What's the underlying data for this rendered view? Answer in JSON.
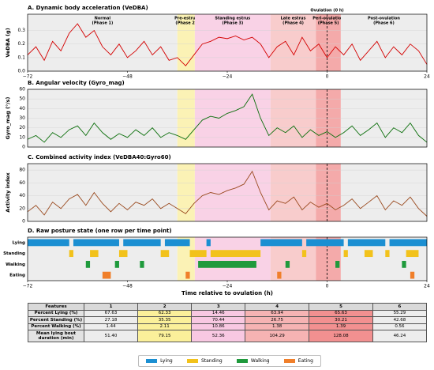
{
  "chart_data": [
    {
      "type": "line",
      "title": "A.  Dynamic body acceleration (VeDBA)",
      "ylabel": "VeDBA (g)",
      "color": "#d40000",
      "grid": true,
      "xlim": [
        -72,
        24
      ],
      "ylim": [
        0,
        0.42
      ],
      "xticks": [
        {
          "value": -72,
          "label": "−72"
        },
        {
          "value": -48,
          "label": "−48"
        },
        {
          "value": -24,
          "label": "−24"
        },
        0,
        24
      ],
      "yticks": [
        {
          "value": 0,
          "label": "0.0"
        },
        0.1,
        0.2,
        0.3
      ],
      "phases": [
        {
          "name": "Normal",
          "phase": "(Phase 1)",
          "start": -72,
          "end": -36,
          "color": "#ededed"
        },
        {
          "name": "Pre-estrus",
          "phase": "(Phase 2)",
          "start": -36,
          "end": -31.8,
          "color": "#fbf2b5"
        },
        {
          "name": "Standing estrus",
          "phase": "(Phase 3)",
          "start": -31.8,
          "end": -13.6,
          "color": "#f9d2e6"
        },
        {
          "name": "Late estrus",
          "phase": "(Phase 4)",
          "start": -13.6,
          "end": -2.7,
          "color": "#f8cccc"
        },
        {
          "name": "Peri-ovulation",
          "phase": "(Phase 5)",
          "start": -2.7,
          "end": 3.3,
          "color": "#f4aaaa"
        },
        {
          "name": "Post-ovulation",
          "phase": "(Phase 6)",
          "start": 3.3,
          "end": 24,
          "color": "#ededed"
        }
      ],
      "ovulation": {
        "label": "Ovulation (0 h)",
        "x": 0
      },
      "x": [
        -72,
        -70,
        -68,
        -66,
        -64,
        -62,
        -60,
        -58,
        -56,
        -54,
        -52,
        -50,
        -48,
        -46,
        -44,
        -42,
        -40,
        -38,
        -36,
        -34,
        -32,
        -30,
        -28,
        -26,
        -24,
        -22,
        -20,
        -18,
        -16,
        -14,
        -12,
        -10,
        -8,
        -6,
        -4,
        -2,
        0,
        2,
        4,
        6,
        8,
        10,
        12,
        14,
        16,
        18,
        20,
        22,
        24
      ],
      "values": [
        0.12,
        0.18,
        0.08,
        0.22,
        0.15,
        0.28,
        0.35,
        0.25,
        0.3,
        0.18,
        0.12,
        0.2,
        0.1,
        0.15,
        0.22,
        0.12,
        0.18,
        0.08,
        0.1,
        0.04,
        0.12,
        0.2,
        0.22,
        0.25,
        0.24,
        0.26,
        0.23,
        0.25,
        0.2,
        0.1,
        0.18,
        0.22,
        0.12,
        0.25,
        0.15,
        0.2,
        0.1,
        0.18,
        0.12,
        0.2,
        0.08,
        0.15,
        0.22,
        0.1,
        0.18,
        0.12,
        0.2,
        0.15,
        0.05
      ]
    },
    {
      "type": "line",
      "title": "B.  Angular velocity (Gyro_mag)",
      "ylabel": "Gyro_mag (°/s)",
      "color": "#0a6e0a",
      "grid": true,
      "xlim": [
        -72,
        24
      ],
      "ylim": [
        0,
        60
      ],
      "yticks": [
        0,
        10,
        20,
        30,
        40,
        50,
        60
      ],
      "x": [
        -72,
        -70,
        -68,
        -66,
        -64,
        -62,
        -60,
        -58,
        -56,
        -54,
        -52,
        -50,
        -48,
        -46,
        -44,
        -42,
        -40,
        -38,
        -36,
        -34,
        -32,
        -30,
        -28,
        -26,
        -24,
        -22,
        -20,
        -18,
        -16,
        -14,
        -12,
        -10,
        -8,
        -6,
        -4,
        -2,
        0,
        2,
        4,
        6,
        8,
        10,
        12,
        14,
        16,
        18,
        20,
        22,
        24
      ],
      "values": [
        8,
        12,
        5,
        15,
        10,
        18,
        22,
        12,
        25,
        15,
        8,
        14,
        10,
        18,
        12,
        20,
        10,
        15,
        12,
        8,
        18,
        28,
        32,
        30,
        35,
        38,
        42,
        55,
        30,
        12,
        20,
        15,
        22,
        10,
        18,
        12,
        16,
        10,
        15,
        22,
        12,
        18,
        25,
        10,
        20,
        15,
        25,
        12,
        5
      ]
    },
    {
      "type": "line",
      "title": "C.  Combined activity index (VeDBA40:Gyro60)",
      "ylabel": "Activity index",
      "color": "#9a4a1f",
      "grid": true,
      "xlim": [
        -72,
        24
      ],
      "ylim": [
        0,
        90
      ],
      "yticks": [
        0,
        20,
        40,
        60,
        80
      ],
      "x": [
        -72,
        -70,
        -68,
        -66,
        -64,
        -62,
        -60,
        -58,
        -56,
        -54,
        -52,
        -50,
        -48,
        -46,
        -44,
        -42,
        -40,
        -38,
        -36,
        -34,
        -32,
        -30,
        -28,
        -26,
        -24,
        -22,
        -20,
        -18,
        -16,
        -14,
        -12,
        -10,
        -8,
        -6,
        -4,
        -2,
        0,
        2,
        4,
        6,
        8,
        10,
        12,
        14,
        16,
        18,
        20,
        22,
        24
      ],
      "values": [
        15,
        25,
        10,
        30,
        20,
        35,
        42,
        25,
        45,
        28,
        15,
        28,
        18,
        30,
        25,
        35,
        20,
        28,
        20,
        12,
        28,
        40,
        45,
        42,
        48,
        52,
        58,
        78,
        45,
        18,
        32,
        28,
        38,
        18,
        30,
        22,
        28,
        18,
        25,
        35,
        20,
        30,
        40,
        18,
        32,
        25,
        38,
        20,
        8
      ]
    },
    {
      "type": "raster",
      "title": "D.  Raw posture state (one row per time point)",
      "xlabel": "Time relative to ovulation (h)",
      "xlim": [
        -72,
        24
      ],
      "xticks": [
        {
          "value": -72,
          "label": "−72"
        },
        {
          "value": -48,
          "label": "−48"
        },
        {
          "value": -24,
          "label": "−24"
        },
        0,
        24
      ],
      "rows": [
        {
          "name": "Lying",
          "color": "#1b8fd2",
          "intervals": [
            [
              -72,
              -62
            ],
            [
              -61,
              -50
            ],
            [
              -49,
              -40
            ],
            [
              -39,
              -33
            ],
            [
              -29,
              -28
            ],
            [
              -16,
              -6
            ],
            [
              -5,
              4
            ],
            [
              5,
              14
            ],
            [
              15,
              24
            ]
          ]
        },
        {
          "name": "Standing",
          "color": "#f2c21b",
          "intervals": [
            [
              -62,
              -61
            ],
            [
              -57,
              -55
            ],
            [
              -50,
              -48
            ],
            [
              -40,
              -38
            ],
            [
              -33,
              -29
            ],
            [
              -28,
              -16
            ],
            [
              -6,
              -5
            ],
            [
              4,
              5
            ],
            [
              9,
              11
            ],
            [
              14,
              15
            ],
            [
              19,
              22
            ]
          ]
        },
        {
          "name": "Walking",
          "color": "#1f9a3c",
          "intervals": [
            [
              -58,
              -57
            ],
            [
              -51,
              -50
            ],
            [
              -45,
              -44
            ],
            [
              -31,
              -17
            ],
            [
              -10,
              -9
            ],
            [
              2,
              3
            ],
            [
              18,
              19
            ]
          ]
        },
        {
          "name": "Eating",
          "color": "#f07f2a",
          "intervals": [
            [
              -54,
              -52
            ],
            [
              -34,
              -33
            ],
            [
              -12,
              -11
            ],
            [
              20,
              21
            ]
          ]
        }
      ]
    }
  ],
  "table": {
    "header": [
      "Features",
      "1",
      "2",
      "3",
      "4",
      "5",
      "6"
    ],
    "column_colors": [
      "#e2e2e2",
      "#ededed",
      "#fbf09a",
      "#f8c8e2",
      "#f6b3b3",
      "#f29090",
      "#ededed"
    ],
    "rows": [
      [
        "Percent Lying (%)",
        "67.63",
        "62.33",
        "14.46",
        "63.94",
        "65.63",
        "55.29"
      ],
      [
        "Percent Standing (%)",
        "27.18",
        "35.35",
        "70.44",
        "26.75",
        "30.21",
        "42.68"
      ],
      [
        "Percent Walking (%)",
        "1.44",
        "2.11",
        "10.86",
        "1.38",
        "1.39",
        "0.56"
      ],
      [
        "Mean lying bout duration (min)",
        "51.40",
        "79.15",
        "52.36",
        "104.29",
        "128.08",
        "46.24"
      ]
    ]
  }
}
